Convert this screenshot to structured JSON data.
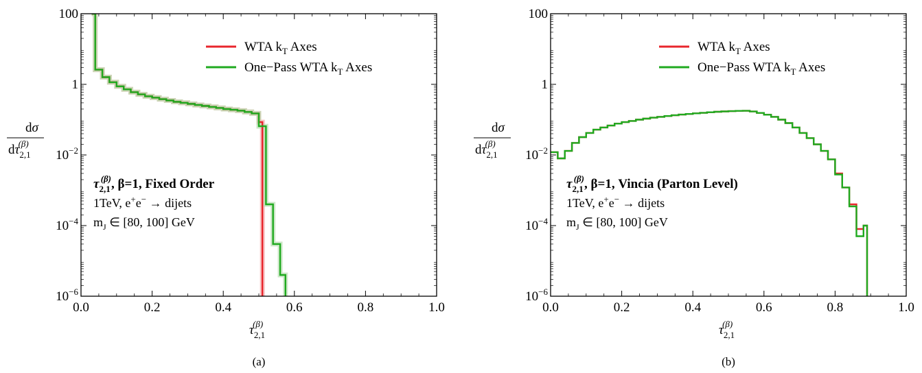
{
  "colors": {
    "wta": "#e8252c",
    "onepass": "#1faa1f",
    "band_wta": "#f4a6a6",
    "band_onepass": "#b8ddb0"
  },
  "chart_data": [
    {
      "type": "line",
      "step": true,
      "log_y": true,
      "panel_label": "(a)",
      "xlabel": "τ2,1(β)",
      "ylabel": "dσ / dτ2,1(β)",
      "xlim": [
        0.0,
        1.0
      ],
      "ylim": [
        1e-06,
        100
      ],
      "xticks": [
        "0.0",
        "0.2",
        "0.4",
        "0.6",
        "0.8",
        "1.0"
      ],
      "yticks": [
        {
          "value": 100,
          "mantissa": "100",
          "exp": ""
        },
        {
          "value": 1,
          "mantissa": "1",
          "exp": ""
        },
        {
          "value": 0.01,
          "mantissa": "10",
          "exp": "−2"
        },
        {
          "value": 0.0001,
          "mantissa": "10",
          "exp": "−4"
        },
        {
          "value": 1e-06,
          "mantissa": "10",
          "exp": "−6"
        }
      ],
      "legend": {
        "placement": "top-right"
      },
      "annotation": {
        "title_main": "τ",
        "title_sub": "2,1",
        "title_sup": "(β)",
        "title_rest": ",  β=1,  Fixed Order",
        "line1_pre": "1TeV,  e",
        "line1_sup1": "+",
        "line1_mid": "e",
        "line1_sup2": "−",
        "line1_post": " → dijets",
        "line2_pre": "m",
        "line2_sub": "J",
        "line2_post": " ∈ [80, 100] GeV"
      },
      "series": [
        {
          "name_main": "WTA k",
          "name_sub": "T",
          "name_rest": " Axes",
          "color": "#e8252c",
          "edges": [
            0.03,
            0.04,
            0.06,
            0.08,
            0.1,
            0.12,
            0.14,
            0.16,
            0.18,
            0.2,
            0.22,
            0.24,
            0.26,
            0.28,
            0.3,
            0.32,
            0.34,
            0.36,
            0.38,
            0.4,
            0.42,
            0.44,
            0.46,
            0.48,
            0.5,
            0.51
          ],
          "values": [
            100,
            2.6,
            1.6,
            1.15,
            0.88,
            0.72,
            0.6,
            0.52,
            0.46,
            0.42,
            0.38,
            0.35,
            0.32,
            0.3,
            0.28,
            0.26,
            0.245,
            0.23,
            0.215,
            0.2,
            0.19,
            0.18,
            0.165,
            0.15,
            0.085
          ],
          "drop_to_floor_at": 0.51
        },
        {
          "name_main": "One−Pass WTA k",
          "name_sub": "T",
          "name_rest": " Axes",
          "color": "#1faa1f",
          "edges": [
            0.03,
            0.04,
            0.06,
            0.08,
            0.1,
            0.12,
            0.14,
            0.16,
            0.18,
            0.2,
            0.22,
            0.24,
            0.26,
            0.28,
            0.3,
            0.32,
            0.34,
            0.36,
            0.38,
            0.4,
            0.42,
            0.44,
            0.46,
            0.48,
            0.5,
            0.51,
            0.52,
            0.54,
            0.56,
            0.575
          ],
          "values": [
            100,
            2.6,
            1.6,
            1.15,
            0.88,
            0.72,
            0.6,
            0.52,
            0.46,
            0.42,
            0.38,
            0.35,
            0.32,
            0.3,
            0.28,
            0.26,
            0.245,
            0.23,
            0.215,
            0.2,
            0.19,
            0.18,
            0.165,
            0.15,
            0.065,
            0.065,
            0.0004,
            3e-05,
            4e-06
          ],
          "drop_to_floor_at": 0.575
        }
      ]
    },
    {
      "type": "line",
      "step": true,
      "log_y": true,
      "panel_label": "(b)",
      "xlabel": "τ2,1(β)",
      "ylabel": "dσ / dτ2,1(β)",
      "xlim": [
        0.0,
        1.0
      ],
      "ylim": [
        1e-06,
        100
      ],
      "xticks": [
        "0.0",
        "0.2",
        "0.4",
        "0.6",
        "0.8",
        "1.0"
      ],
      "yticks": [
        {
          "value": 100,
          "mantissa": "100",
          "exp": ""
        },
        {
          "value": 1,
          "mantissa": "1",
          "exp": ""
        },
        {
          "value": 0.01,
          "mantissa": "10",
          "exp": "−2"
        },
        {
          "value": 0.0001,
          "mantissa": "10",
          "exp": "−4"
        },
        {
          "value": 1e-06,
          "mantissa": "10",
          "exp": "−6"
        }
      ],
      "legend": {
        "placement": "top-right"
      },
      "annotation": {
        "title_main": "τ",
        "title_sub": "2,1",
        "title_sup": "(β)",
        "title_rest": ",  β=1,  Vincia (Parton Level)",
        "line1_pre": "1TeV,  e",
        "line1_sup1": "+",
        "line1_mid": "e",
        "line1_sup2": "−",
        "line1_post": " → dijets",
        "line2_pre": "m",
        "line2_sub": "J",
        "line2_post": " ∈ [80, 100] GeV"
      },
      "series": [
        {
          "name_main": "WTA k",
          "name_sub": "T",
          "name_rest": " Axes",
          "color": "#e8252c",
          "edges": [
            0.0,
            0.02,
            0.04,
            0.06,
            0.08,
            0.1,
            0.12,
            0.14,
            0.16,
            0.18,
            0.2,
            0.22,
            0.24,
            0.26,
            0.28,
            0.3,
            0.32,
            0.34,
            0.36,
            0.38,
            0.4,
            0.42,
            0.44,
            0.46,
            0.48,
            0.5,
            0.52,
            0.54,
            0.56,
            0.58,
            0.6,
            0.62,
            0.64,
            0.66,
            0.68,
            0.7,
            0.72,
            0.74,
            0.76,
            0.78,
            0.8,
            0.82,
            0.84,
            0.86,
            0.88,
            0.89
          ],
          "values": [
            0.012,
            0.008,
            0.013,
            0.022,
            0.032,
            0.042,
            0.052,
            0.06,
            0.068,
            0.077,
            0.085,
            0.092,
            0.1,
            0.107,
            0.114,
            0.12,
            0.127,
            0.133,
            0.139,
            0.145,
            0.151,
            0.156,
            0.162,
            0.167,
            0.171,
            0.174,
            0.177,
            0.178,
            0.17,
            0.155,
            0.138,
            0.12,
            0.1,
            0.08,
            0.06,
            0.042,
            0.03,
            0.02,
            0.013,
            0.0075,
            0.003,
            0.0012,
            0.0004,
            8e-05,
            0.0001
          ],
          "drop_to_floor_at": 0.89
        },
        {
          "name_main": "One−Pass WTA k",
          "name_sub": "T",
          "name_rest": " Axes",
          "color": "#1faa1f",
          "edges": [
            0.0,
            0.02,
            0.04,
            0.06,
            0.08,
            0.1,
            0.12,
            0.14,
            0.16,
            0.18,
            0.2,
            0.22,
            0.24,
            0.26,
            0.28,
            0.3,
            0.32,
            0.34,
            0.36,
            0.38,
            0.4,
            0.42,
            0.44,
            0.46,
            0.48,
            0.5,
            0.52,
            0.54,
            0.56,
            0.58,
            0.6,
            0.62,
            0.64,
            0.66,
            0.68,
            0.7,
            0.72,
            0.74,
            0.76,
            0.78,
            0.8,
            0.82,
            0.84,
            0.86,
            0.88,
            0.89
          ],
          "values": [
            0.012,
            0.008,
            0.013,
            0.022,
            0.032,
            0.042,
            0.052,
            0.06,
            0.068,
            0.077,
            0.085,
            0.092,
            0.1,
            0.107,
            0.114,
            0.12,
            0.127,
            0.133,
            0.139,
            0.145,
            0.151,
            0.156,
            0.162,
            0.167,
            0.171,
            0.174,
            0.177,
            0.178,
            0.17,
            0.155,
            0.138,
            0.12,
            0.1,
            0.08,
            0.06,
            0.042,
            0.03,
            0.02,
            0.013,
            0.0075,
            0.0028,
            0.0012,
            0.00035,
            5e-05,
            0.0001
          ],
          "drop_to_floor_at": 0.89
        }
      ]
    }
  ]
}
